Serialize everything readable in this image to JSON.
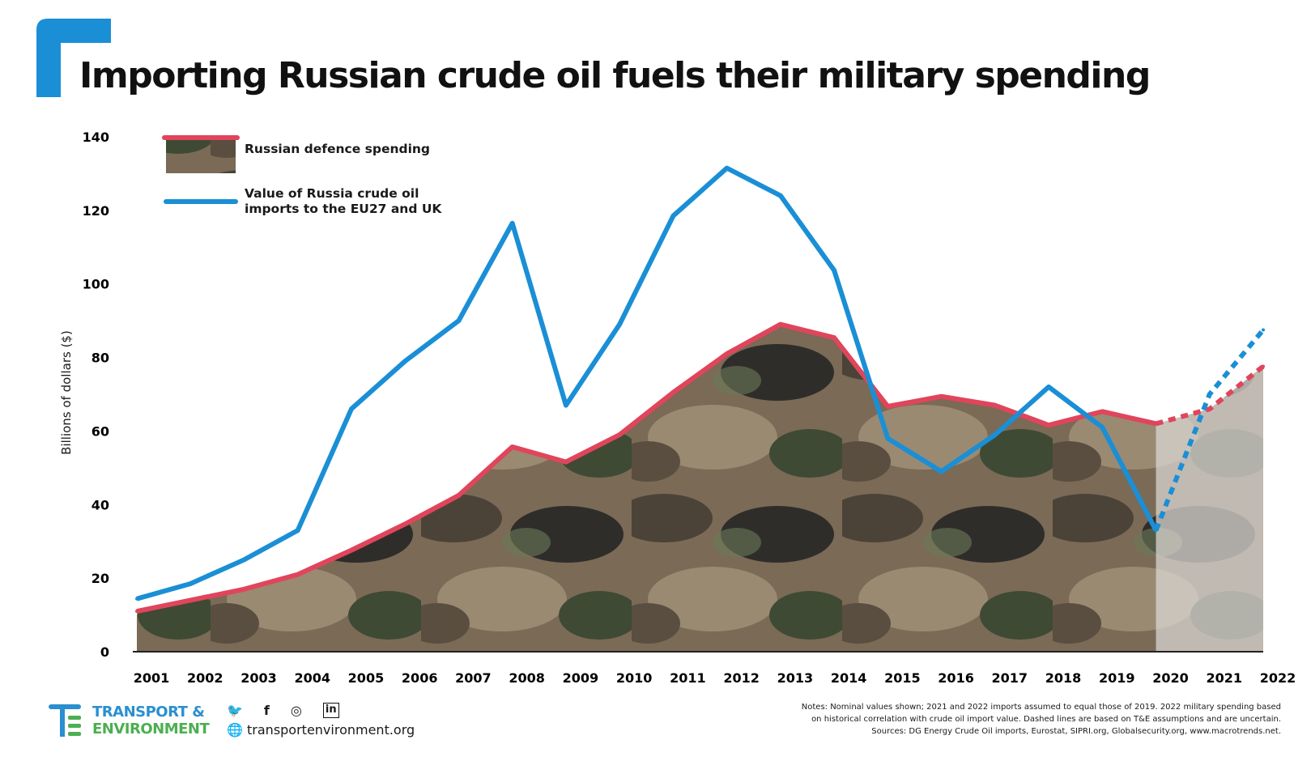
{
  "title": "Importing Russian crude oil fuels their military spending",
  "colors": {
    "accent": "#1a8fd6",
    "defence_line": "#e0455c",
    "oil_line": "#1a8fd6",
    "projection_overlay": "#d9d6d2",
    "logo_blue": "#2a8fd0",
    "logo_green": "#4caf50"
  },
  "chart_data": {
    "type": "area+line",
    "ylabel": "Billions of dollars ($)",
    "ylim": [
      0,
      140
    ],
    "yticks": [
      0,
      20,
      40,
      60,
      80,
      100,
      120,
      140
    ],
    "categories": [
      "2001",
      "2002",
      "2003",
      "2004",
      "2005",
      "2006",
      "2007",
      "2008",
      "2009",
      "2010",
      "2011",
      "2012",
      "2013",
      "2014",
      "2015",
      "2016",
      "2017",
      "2018",
      "2019",
      "2020",
      "2021",
      "2022"
    ],
    "projection_start": "2020",
    "grid": false,
    "legend_placement": "top-left",
    "series": [
      {
        "name": "Russian defence spending",
        "style": "area with camouflage fill, red top line, dashed after 2020",
        "values": [
          11,
          14,
          17,
          21,
          27.6,
          34.7,
          42.5,
          55.7,
          51.6,
          59,
          70.5,
          81,
          89,
          85.4,
          66.7,
          69.4,
          67,
          61.6,
          65.3,
          62,
          66,
          77.6
        ]
      },
      {
        "name": "Value of Russia crude oil imports to the EU27 and UK",
        "style": "blue line, dashed after 2020",
        "values": [
          14.4,
          18.5,
          25,
          33,
          66,
          79,
          90,
          116.5,
          67,
          89,
          118.5,
          131.5,
          124,
          103.7,
          58,
          49,
          59,
          72,
          61,
          33,
          70,
          87.5
        ]
      }
    ]
  },
  "legend": {
    "defence": "Russian defence spending",
    "oil": "Value of Russia crude oil imports to the EU27 and UK"
  },
  "footer": {
    "logo_line1": "TRANSPORT &",
    "logo_line2": "ENVIRONMENT",
    "social": {
      "twitter": "twitter-icon",
      "facebook": "f",
      "instagram": "◎",
      "linkedin": "in"
    },
    "url": "transportenvironment.org",
    "notes": [
      "Notes: Nominal values shown; 2021 and 2022 imports assumed to equal those of 2019. 2022 military spending based",
      "on historical correlation with crude oil import value. Dashed lines are based on T&E assumptions and are uncertain.",
      "Sources: DG Energy Crude Oil imports, Eurostat, SIPRI.org, Globalsecurity.org, www.macrotrends.net."
    ]
  }
}
